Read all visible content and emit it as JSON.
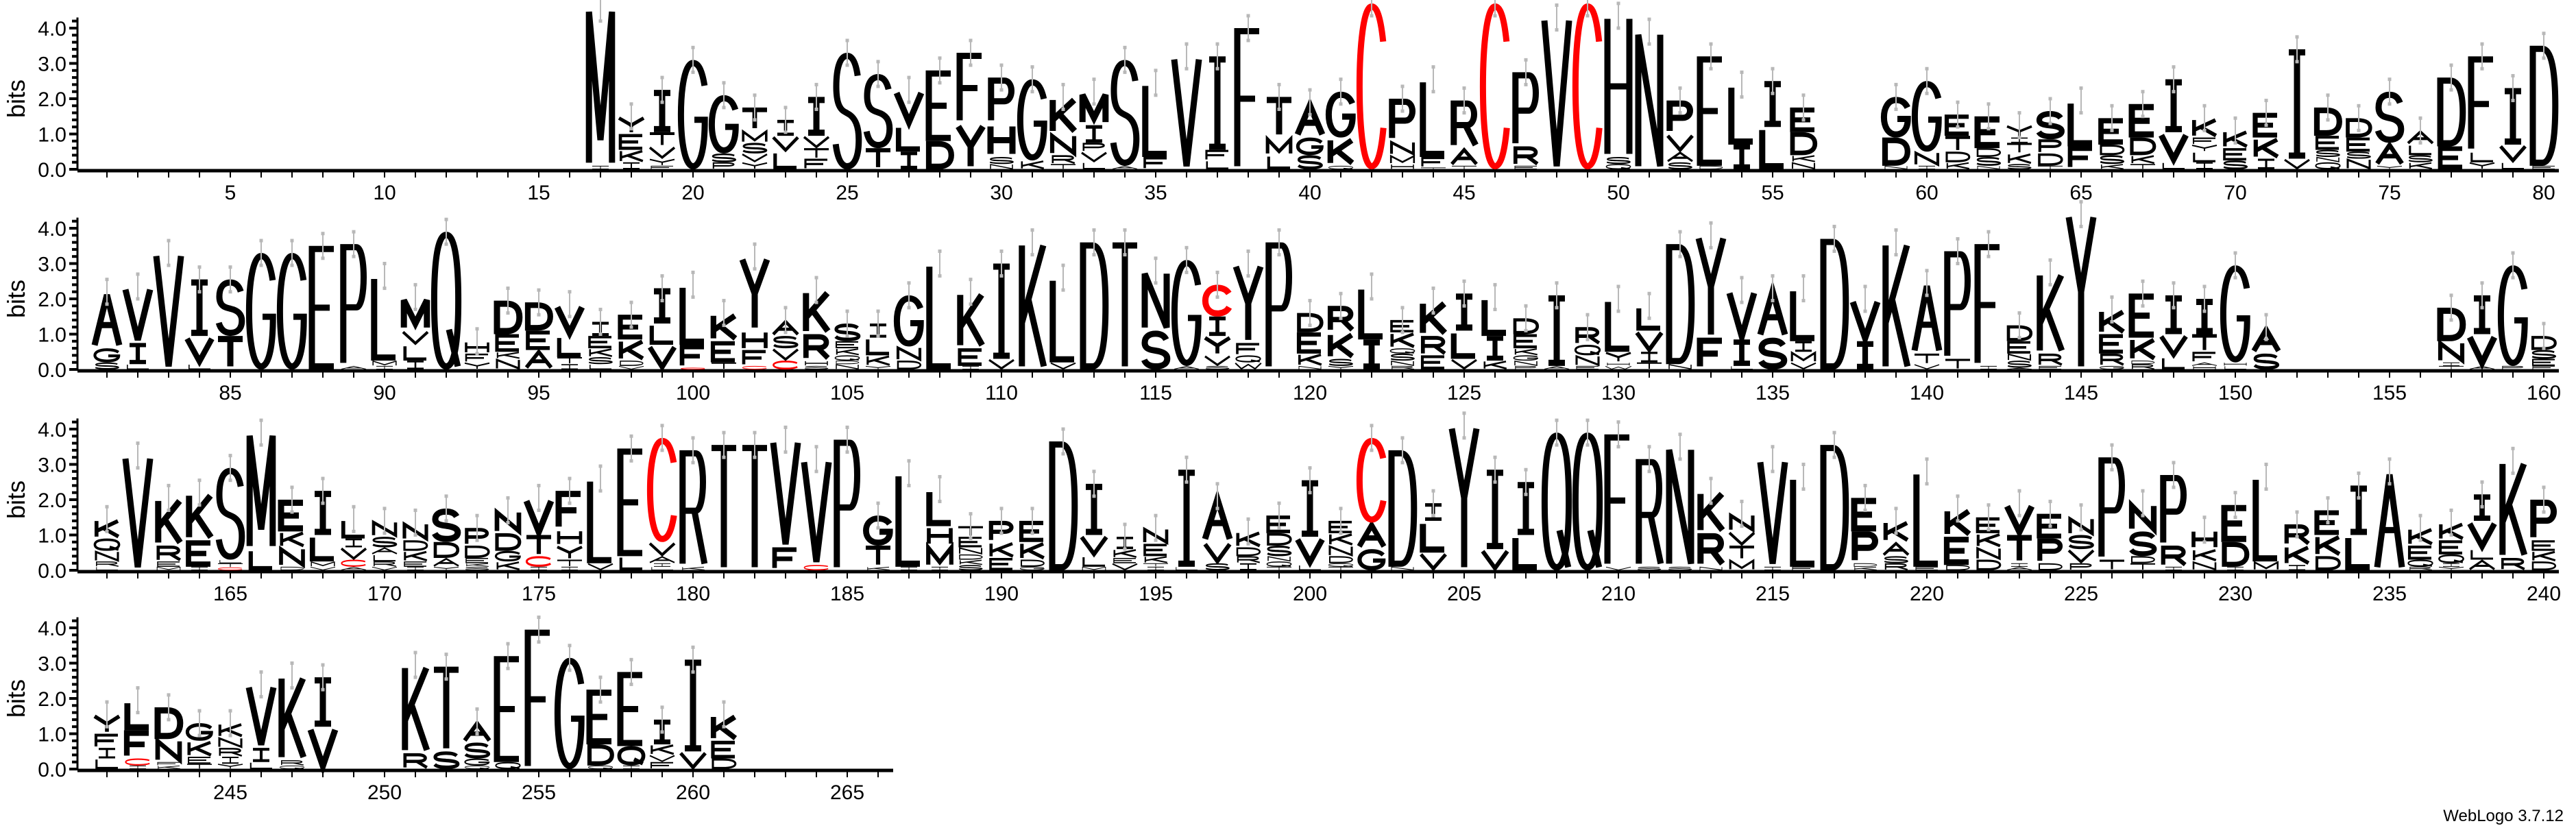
{
  "chart_data": {
    "type": "sequence-logo",
    "ylabel": "bits",
    "y_ticks": [
      "0.0",
      "1.0",
      "2.0",
      "3.0",
      "4.0"
    ],
    "ylim": [
      0,
      4.3
    ],
    "x_tick_every": 5,
    "first_position": 1,
    "positions_per_row": 80,
    "colors": {
      "default": "#000000",
      "C": "#ff0000",
      "error_bar": "#b8b8b8"
    },
    "stacks_bottom_to_top": [
      "",
      "",
      "",
      "",
      "",
      "",
      "",
      "",
      "",
      "",
      "",
      "",
      "",
      "",
      "",
      "",
      "I0.1 M4.45",
      "I0.2 K0.35 E0.45 Y0.5",
      "F0.1 Y0.2 V0.35 T0.4 I1.2",
      "G3.1",
      "P0.2 S0.25 G1.65",
      "Y0.2 V0.25 S0.3 M0.35 T0.65",
      "L0.5 V0.45 I0.45",
      "F0.3 T0.3 V0.35 I1.1",
      "S3.3",
      "T0.6 S2.1",
      "I0.5 L0.75 V1.0",
      "D0.8 E2.0",
      "Y1.3 F2.0",
      "N0.15 S0.2 H0.95 P1.3",
      "K0.25 G2.3",
      "T0.15 R0.25 N0.6 K1.05",
      "L0.2 V0.3 P0.25 I0.5 M0.95",
      "A0.1 S3.0",
      "F0.35 L2.1",
      "V3.2",
      "L0.25 F0.3 I2.65",
      "F4.0",
      "L0.4 M0.5 T1.15",
      "S0.4 G0.5 A1.0",
      "Q0.1 K0.8 G1.3",
      "C4.7",
      "H0.15 M0.25 N0.4 P1.2",
      "T0.05 F0.3 L2.2",
      "T0.1 A0.5 R1.35",
      "C4.7",
      "E0.1 R0.55 P2.1",
      "V4.3",
      "C4.7",
      "Q0.15 S0.2 H4.0",
      "N3.9",
      "S0.2 A0.3 V0.5 P0.95",
      "D0.1 E3.1",
      "I0.7 L1.7",
      "L1.2 I1.3",
      "N0.2 K0.2 D0.65 E0.7",
      "",
      "",
      "N0.1 D0.8 G1.15",
      "I0.1 N0.4 G2.0",
      "K0.2 D0.3 T0.45 E0.6",
      "N0.1 S0.25 D0.25 E0.9",
      "S0.15 K0.3 T0.3 I0.15 Y0.35",
      "T0.1 D0.35 P0.4 S0.8",
      "F0.65 L1.3",
      "K0.15 S0.25 D0.3 E0.75",
      "T0.15 K0.25 D0.5 E0.95",
      "L0.2 V0.85 I1.5",
      "I0.2 L0.3 Y0.2 F0.2 K0.55",
      "S0.25 E0.35 K0.5",
      "I0.3 K0.6 E0.7",
      "V0.3 I3.1",
      "Q0.2 N0.15 S0.2 E0.4 D0.8",
      "N0.3 S0.2 E0.4 D0.55",
      "Y0.1 A0.65 S1.45",
      "K0.2 S0.2 L0.3 A0.4",
      "E0.65 D1.95",
      "Y0.2 L0.3 F2.7",
      "L0.2 V0.5 I1.6",
      "E0.1 D3.4",
      "S0.2 G0.4 A1.6",
      "L0.15 I0.6 V1.6",
      "V3.3",
      "L0.15 V0.8 I1.6",
      "T0.95 S1.6",
      "G3.3",
      "G3.3",
      "E3.5",
      "A0.1 P3.45",
      "I0.1 M0.15 L2.4",
      "I0.25 L0.45 V0.4 M0.95",
      "Q3.9",
      "Y0.2 F0.25 H0.35",
      "N0.3 K0.2 E0.5 D0.95",
      "A0.55 E0.55 D0.8",
      "I0.15 T0.2 L0.6 V0.9",
      "L0.15 S0.2 K0.25 E0.35 I0.4",
      "V0.1 D0.15 K0.6 E0.7",
      "V0.7 L0.6 I1.0",
      "C0.05 F0.65 L1.7",
      "T0.2 E0.6 K0.8",
      "C0.1 F0.45 H0.55 Y2.1",
      "C0.25 V0.35 S0.35 A0.45",
      "S0.1 H0.15 R0.75 K1.25",
      "N0.15 D0.1 Q0.15 K0.2 E0.2 S0.5",
      "Y0.1 K0.3 L0.5 I0.4",
      "D0.25 N0.4 G1.45",
      "L3.0",
      "I0.1 E0.5 K1.6",
      "V0.3 I2.7",
      "K3.6",
      "V0.2 L2.4",
      "D3.6",
      "T3.6",
      "S1.1 N1.7",
      "A0.1 G3.0",
      "S0.1 V0.3 Y0.55 I0.55 C0.9",
      "W0.2 Q0.2 F0.35 Y2.25",
      "P3.6",
      "N0.1 K0.35 E0.6 D0.55",
      "Y0.1 S0.2 K0.75 R0.75",
      "I0.85 L1.5",
      "R0.1 N0.15 S0.2 Q0.15 K0.45 E0.35",
      "E0.4 R0.55 K1.0",
      "V0.3 L0.8 I1.05",
      "K0.25 I0.7 L1.1",
      "P0.1 N0.15 G0.15 K0.2 E0.4 D0.45",
      "A0.1 I2.0",
      "E0.1 N0.3 Q0.3 R0.5",
      "W0.1 H0.1 Y0.3 L1.5",
      "T0.2 I0.3 V0.6 L0.7",
      "N0.15 D3.4",
      "F0.9 Y2.9",
      "L0.1 I0.75 V1.4",
      "S0.9 A1.4",
      "V0.2 M0.3 I0.3 L1.5",
      "D3.7",
      "I0.8 V1.2",
      "K3.6",
      "V0.15 T0.3 A2.0",
      "T0.3 P3.05",
      "I0.1 F3.45",
      "A0.05 S0.2 N0.2 E0.35 D0.45",
      "E0.1 R0.35 K2.3",
      "Y4.4",
      "G0.1 R0.35 E0.55 K0.7",
      "R0.15 D0.1 K0.65 E1.25",
      "L0.35 V0.65 I1.1",
      "H0.1 A0.1 F0.3 T0.5 I1.0",
      "L0.1 H0.1 G2.75",
      "S0.45 A0.75",
      "",
      "",
      "",
      "",
      "",
      "T0.1 I0.1 N0.6 D0.95",
      "A0.1 V0.9 I1.1",
      "P0.1 G2.85",
      "F0.1 E0.2 S0.25 D0.4",
      "L0.1 R0.15 N0.3 Q0.35 K0.55",
      "V3.25",
      "M0.1 E0.15 R0.45 K1.35",
      "I0.1 E0.75 K1.35",
      "C0.08 T0.12 L0.1 S2.6",
      "L0.6 M3.3",
      "D0.1 N0.55 K0.45 E0.9",
      "V0.1 M0.15 L0.75 I1.25",
      "A0.1 C0.2 V0.35 I0.25 L0.55",
      "V0.1 R0.15 L0.2 A0.2 S0.3 N0.45",
      "I0.1 E0.15 K0.3 D0.3 N0.5",
      "Y0.1 A0.25 D0.45 S0.95",
      "S0.1 K0.1 E0.15 D0.35 P0.5",
      "K0.25 G0.3 D0.5 N0.65",
      "I0.1 C0.3 T0.6 V1.05",
      "I0.1 T0.2 Y0.4 H0.45 F1.1",
      "V0.2 L2.4",
      "L0.4 E3.05",
      "L0.1 I0.1 A0.2 V0.4 C2.95",
      "K0.1 R3.3",
      "T3.55",
      "T3.55",
      "F0.65 V3.05",
      "C0.15 V3.0",
      "P3.7",
      "K0.1 T0.6 G0.85",
      "I0.1 L2.65",
      "I0.1 M0.6 H0.55 L1.05",
      "S0.15 K0.15 D0.15 N0.2 E0.3 T0.3",
      "E0.35 K0.45 P0.6",
      "G0.1 D0.2 K0.5 E0.6",
      "D3.65",
      "M0.1 L0.3 V0.6 I1.45",
      "V0.2 E0.15 K0.25 I0.35",
      "I0.1 T0.1 K0.2 E0.35 N0.45",
      "L0.1 I2.75",
      "S0.2 V0.6 A1.3",
      "I0.2 R0.2 D0.25 K0.45",
      "T0.1 Q0.15 N0.15 S0.3 D0.35 E0.5",
      "L0.15 V0.8 I1.6",
      "T0.1 Q0.1 D0.2 N0.3 K0.35 E0.35",
      "G0.6 A0.75 C2.4",
      "N0.1 D3.3",
      "V0.5 L0.9 I0.5",
      "Y4.1",
      "V0.6 I2.25",
      "L1.0 I1.5",
      "Q3.9",
      "Q3.9",
      "V0.1 F3.75",
      "S0.1 R3.05",
      "S0.1 N3.4",
      "N0.1 R0.95 K1.2",
      "M0.3 T0.4 V0.4 N0.5",
      "I0.1 V3.05",
      "F0.1 L2.55",
      "D3.55",
      "K0.1 D0.1 P0.9 E0.95",
      "R0.2 S0.2 A0.4 K0.6",
      "E0.1 L2.7",
      "D0.15 E0.8 K0.8",
      "D0.3 N0.35 K0.4 E0.45",
      "A0.1 I0.1 T0.8 V0.9",
      "D0.2 P0.7 E0.7",
      "P0.2 V0.4 S0.4 N0.5",
      "T0.3 P2.9",
      "T0.2 D0.2 S0.7 N0.8",
      "I0.1 R0.6 P2.0",
      "N0.25 K0.35 H0.55",
      "I0.1 D0.7 E1.05",
      "M0.25 L2.4",
      "I0.15 K0.55 R0.6",
      "D0.4 K0.6 E0.7",
      "L1.0 I1.4",
      "A2.8",
      "R0.1 Q0.2 E0.4 K0.5",
      "Y0.1 I0.1 Q0.25 E0.4 K0.5",
      "A0.3 L0.3 V0.8 I0.75",
      "R0.35 K2.75",
      "D0.25 K0.3 E0.3 P1.15",
      "L0.3 I0.3 F0.4 Y0.55",
      "I0.1 C0.2 F0.8 L0.85",
      "K0.1 F0.1 N0.65 D0.9",
      "T0.15 E0.2 K0.45 G0.5",
      "Y0.15 I0.2 R0.25 N0.3 K0.4",
      "L0.2 I0.4 V1.8",
      "Q0.1 R0.15 K2.4",
      "V1.2 I1.4",
      "",
      "",
      "R0.45 K2.5",
      "S0.5 T2.4",
      "Q0.1 G0.2 S0.45 A0.6",
      "Q0.2 E3.0",
      "F3.95",
      "G3.15",
      "Q0.1 D0.6 E1.55",
      "I0.1 Q0.55 E2.1",
      "F0.2 V0.2 K0.3 I0.7",
      "V0.5 I2.6",
      "D0.3 E0.5 K0.75",
      "",
      "",
      "",
      "",
      ""
    ]
  },
  "footer": "WebLogo 3.7.12"
}
